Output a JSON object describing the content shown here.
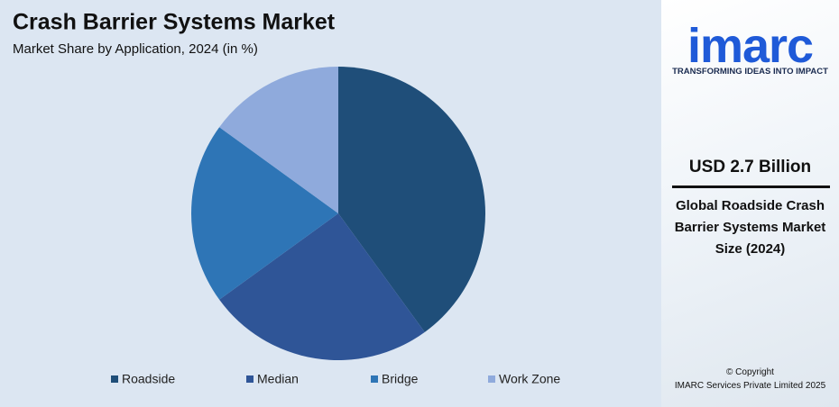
{
  "chart_data": {
    "type": "pie",
    "title": "Crash Barrier Systems Market",
    "subtitle": "Market Share by Application, 2024 (in %)",
    "categories": [
      "Roadside",
      "Median",
      "Bridge",
      "Work Zone"
    ],
    "values": [
      40,
      25,
      20,
      15
    ],
    "colors": [
      "#1f4e79",
      "#2f5597",
      "#2e75b6",
      "#8faadc"
    ]
  },
  "sidebar": {
    "logo": "imarc",
    "tagline": "TRANSFORMING IDEAS INTO IMPACT",
    "value": "USD 2.7 Billion",
    "description": "Global Roadside Crash Barrier Systems Market Size (2024)",
    "copyright": "© Copyright",
    "company": "IMARC Services Private Limited 2025"
  }
}
